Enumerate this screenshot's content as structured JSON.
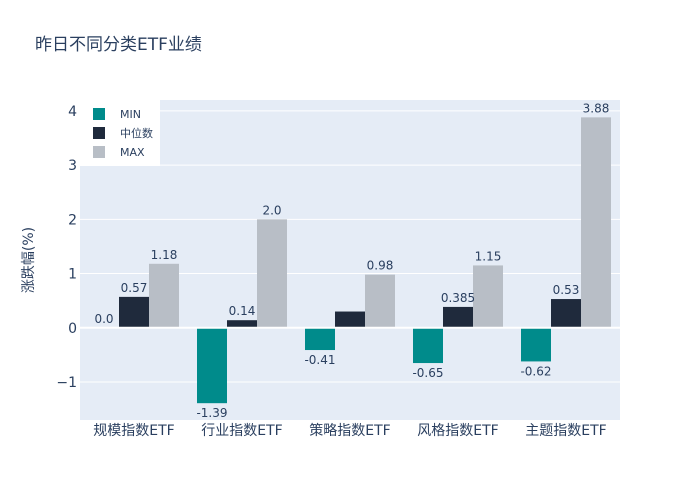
{
  "chart_data": {
    "type": "bar",
    "title": "昨日不同分类ETF业绩",
    "ylabel": "涨跌幅(%)",
    "xlabel": "",
    "categories": [
      "规模指数ETF",
      "行业指数ETF",
      "策略指数ETF",
      "风格指数ETF",
      "主题指数ETF"
    ],
    "ylim": [
      -1.7,
      4.2
    ],
    "yticks": [
      -1,
      0,
      1,
      2,
      3,
      4
    ],
    "ytick_labels": [
      "−1",
      "0",
      "1",
      "2",
      "3",
      "4"
    ],
    "grid": true,
    "legend_position": "top-left",
    "series": [
      {
        "name": "MIN",
        "color": "#008b8b",
        "values": [
          0.0,
          -1.39,
          -0.41,
          -0.65,
          -0.62
        ],
        "labels": [
          "0.0",
          "-1.39",
          "-0.41",
          "-0.65",
          "-0.62"
        ]
      },
      {
        "name": "中位数",
        "color": "#1f2a3c",
        "values": [
          0.57,
          0.14,
          0.3,
          0.385,
          0.53
        ],
        "labels": [
          "0.57",
          "0.14",
          "",
          "0.385",
          "0.53"
        ]
      },
      {
        "name": "MAX",
        "color": "#b8bec6",
        "values": [
          1.18,
          2.0,
          0.98,
          1.15,
          3.88
        ],
        "labels": [
          "1.18",
          "2.0",
          "0.98",
          "1.15",
          "3.88"
        ]
      }
    ]
  }
}
